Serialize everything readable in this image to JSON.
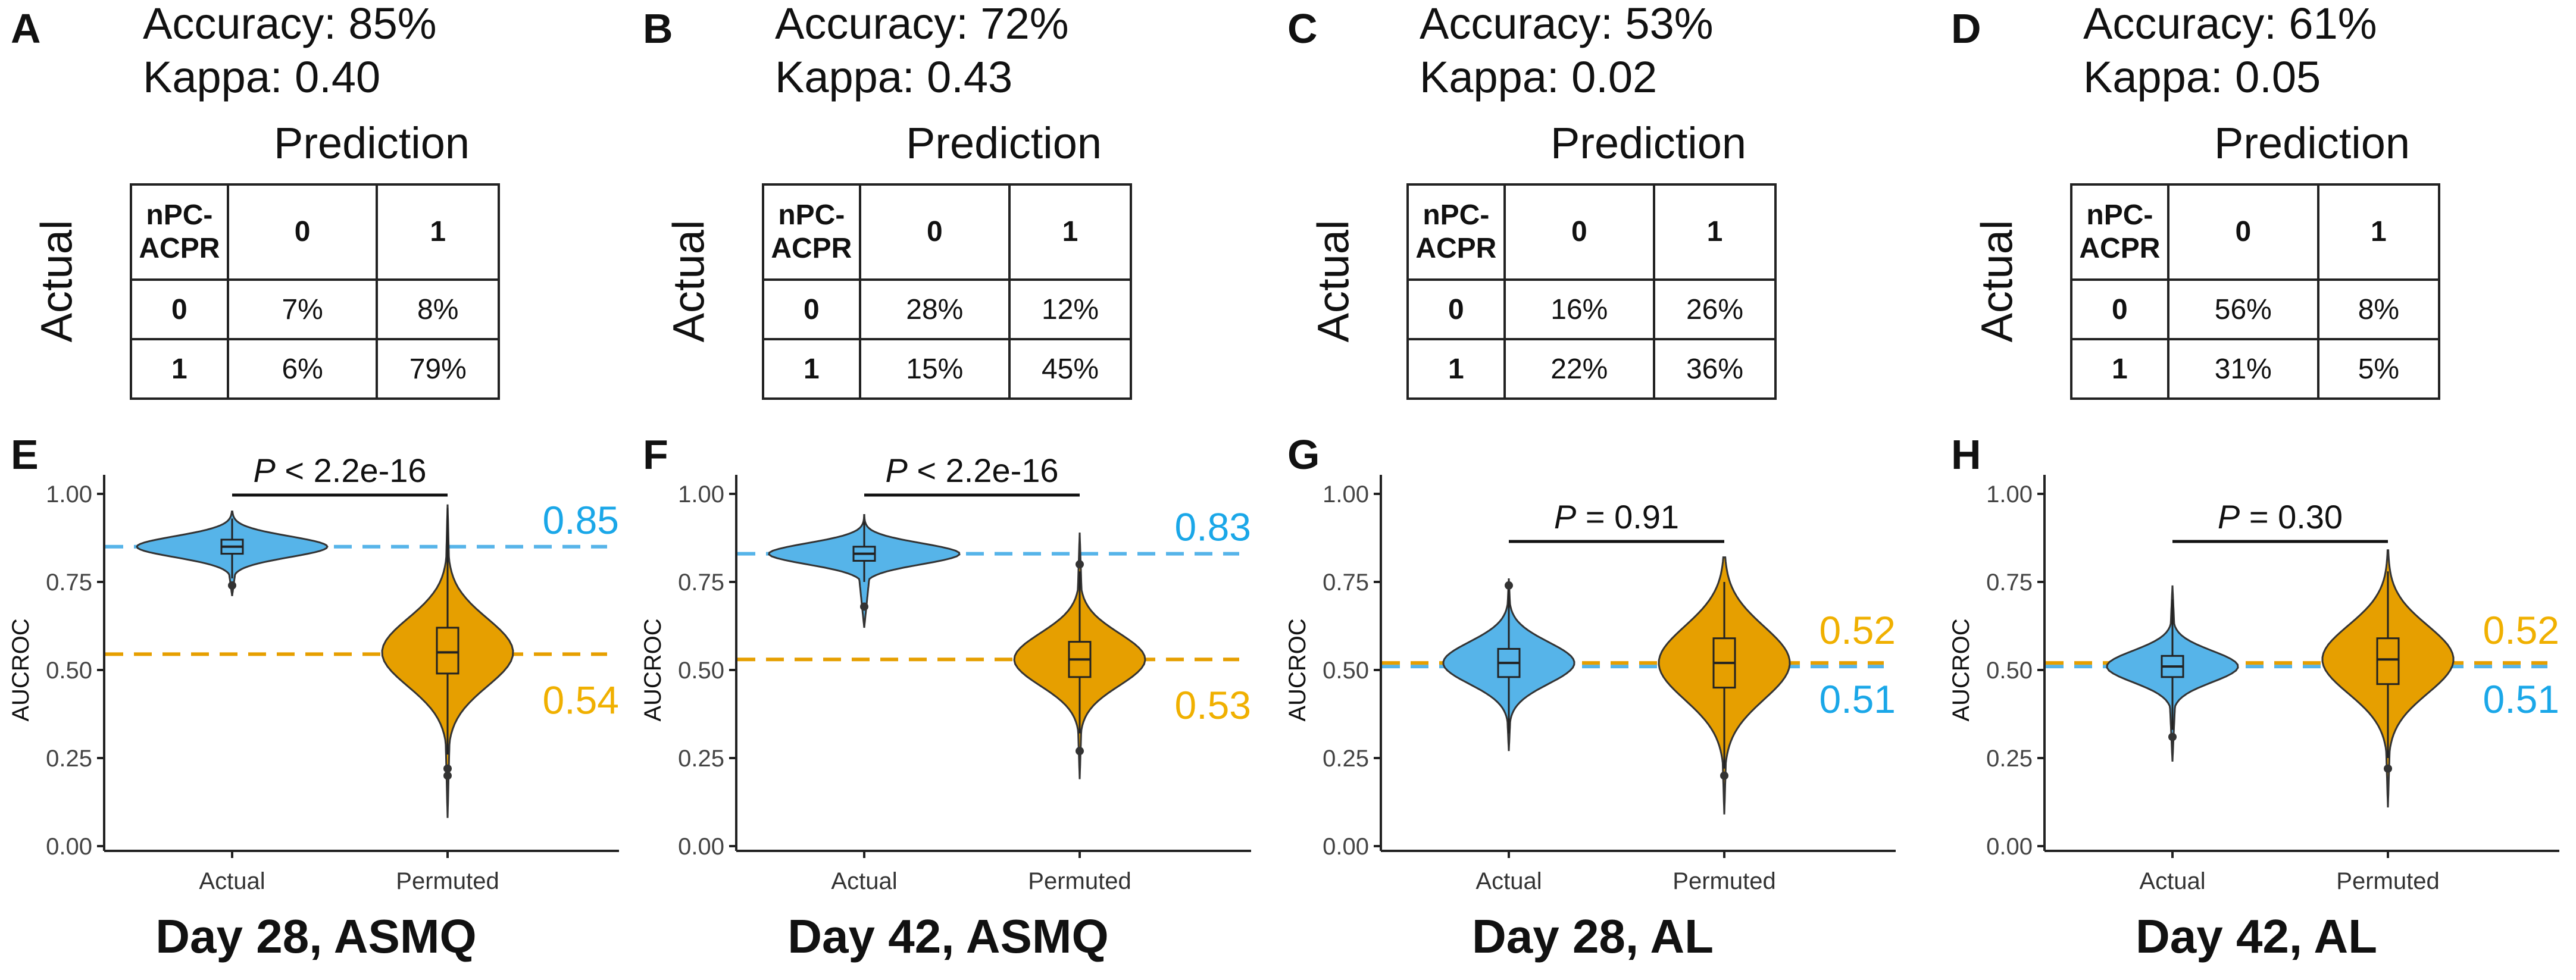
{
  "panels_top": [
    {
      "letter": "A",
      "accuracy": "Accuracy: 85%",
      "kappa": "Kappa: 0.40",
      "pred_label": "Prediction",
      "actual_label": "Actual",
      "corner_l1": "nPC-",
      "corner_l2": "ACPR",
      "col0": "0",
      "col1": "1",
      "rows": [
        {
          "h": "0",
          "c0": "7%",
          "c1": "8%"
        },
        {
          "h": "1",
          "c0": "6%",
          "c1": "79%"
        }
      ]
    },
    {
      "letter": "B",
      "accuracy": "Accuracy: 72%",
      "kappa": "Kappa: 0.43",
      "pred_label": "Prediction",
      "actual_label": "Actual",
      "corner_l1": "nPC-",
      "corner_l2": "ACPR",
      "col0": "0",
      "col1": "1",
      "rows": [
        {
          "h": "0",
          "c0": "28%",
          "c1": "12%"
        },
        {
          "h": "1",
          "c0": "15%",
          "c1": "45%"
        }
      ]
    },
    {
      "letter": "C",
      "accuracy": "Accuracy: 53%",
      "kappa": "Kappa: 0.02",
      "pred_label": "Prediction",
      "actual_label": "Actual",
      "corner_l1": "nPC-",
      "corner_l2": "ACPR",
      "col0": "0",
      "col1": "1",
      "rows": [
        {
          "h": "0",
          "c0": "16%",
          "c1": "26%"
        },
        {
          "h": "1",
          "c0": "22%",
          "c1": "36%"
        }
      ]
    },
    {
      "letter": "D",
      "accuracy": "Accuracy: 61%",
      "kappa": "Kappa: 0.05",
      "pred_label": "Prediction",
      "actual_label": "Actual",
      "corner_l1": "nPC-",
      "corner_l2": "ACPR",
      "col0": "0",
      "col1": "1",
      "rows": [
        {
          "h": "0",
          "c0": "56%",
          "c1": "8%"
        },
        {
          "h": "1",
          "c0": "31%",
          "c1": "5%"
        }
      ]
    }
  ],
  "colors": {
    "actual": "#56B4E9",
    "permuted": "#E69F00",
    "actual_text": "#1AA7E8",
    "permuted_text": "#F0B000"
  },
  "chart_data": [
    {
      "type": "violin",
      "letter": "E",
      "title": "Day 28, ASMQ",
      "ylabel": "AUCROC",
      "ylim": [
        0,
        1
      ],
      "yticks": [
        "0.00",
        "0.25",
        "0.50",
        "0.75",
        "1.00"
      ],
      "categories": [
        "Actual",
        "Permuted"
      ],
      "p_prefix": "P",
      "p_rest": " < 2.2e-16",
      "series": [
        {
          "name": "Actual",
          "median": 0.85,
          "q1": 0.83,
          "q3": 0.87,
          "whisker_low": 0.76,
          "whisker_high": 0.93,
          "min": 0.71,
          "max": 0.95,
          "outliers": [
            0.74
          ],
          "mean_line": 0.85,
          "mean_label": "0.85"
        },
        {
          "name": "Permuted",
          "median": 0.55,
          "q1": 0.49,
          "q3": 0.62,
          "whisker_low": 0.26,
          "whisker_high": 0.96,
          "min": 0.08,
          "max": 0.97,
          "outliers": [
            0.2,
            0.22
          ],
          "mean_line": 0.545,
          "mean_label": "0.54"
        }
      ]
    },
    {
      "type": "violin",
      "letter": "F",
      "title": "Day 42, ASMQ",
      "ylabel": "AUCROC",
      "ylim": [
        0,
        1
      ],
      "yticks": [
        "0.00",
        "0.25",
        "0.50",
        "0.75",
        "1.00"
      ],
      "categories": [
        "Actual",
        "Permuted"
      ],
      "p_prefix": "P",
      "p_rest": " < 2.2e-16",
      "series": [
        {
          "name": "Actual",
          "median": 0.83,
          "q1": 0.81,
          "q3": 0.85,
          "whisker_low": 0.75,
          "whisker_high": 0.92,
          "min": 0.62,
          "max": 0.94,
          "outliers": [
            0.68
          ],
          "mean_line": 0.83,
          "mean_label": "0.83"
        },
        {
          "name": "Permuted",
          "median": 0.53,
          "q1": 0.48,
          "q3": 0.58,
          "whisker_low": 0.32,
          "whisker_high": 0.78,
          "min": 0.19,
          "max": 0.89,
          "outliers": [
            0.27,
            0.8
          ],
          "mean_line": 0.53,
          "mean_label": "0.53"
        }
      ]
    },
    {
      "type": "violin",
      "letter": "G",
      "title": "Day 28, AL",
      "ylabel": "AUCROC",
      "ylim": [
        0,
        1
      ],
      "yticks": [
        "0.00",
        "0.25",
        "0.50",
        "0.75",
        "1.00"
      ],
      "categories": [
        "Actual",
        "Permuted"
      ],
      "p_prefix": "P",
      "p_rest": " = 0.91",
      "series": [
        {
          "name": "Actual",
          "median": 0.52,
          "q1": 0.48,
          "q3": 0.56,
          "whisker_low": 0.32,
          "whisker_high": 0.73,
          "min": 0.27,
          "max": 0.76,
          "outliers": [
            0.74
          ],
          "mean_line": 0.51,
          "mean_label": "0.51"
        },
        {
          "name": "Permuted",
          "median": 0.52,
          "q1": 0.45,
          "q3": 0.59,
          "whisker_low": 0.22,
          "whisker_high": 0.75,
          "min": 0.09,
          "max": 0.82,
          "outliers": [
            0.2
          ],
          "mean_line": 0.52,
          "mean_label": "0.52"
        }
      ]
    },
    {
      "type": "violin",
      "letter": "H",
      "title": "Day 42, AL",
      "ylabel": "AUCROC",
      "ylim": [
        0,
        1
      ],
      "yticks": [
        "0.00",
        "0.25",
        "0.50",
        "0.75",
        "1.00"
      ],
      "categories": [
        "Actual",
        "Permuted"
      ],
      "p_prefix": "P",
      "p_rest": " = 0.30",
      "series": [
        {
          "name": "Actual",
          "median": 0.51,
          "q1": 0.48,
          "q3": 0.54,
          "whisker_low": 0.33,
          "whisker_high": 0.7,
          "min": 0.24,
          "max": 0.74,
          "outliers": [
            0.31
          ],
          "mean_line": 0.51,
          "mean_label": "0.51"
        },
        {
          "name": "Permuted",
          "median": 0.53,
          "q1": 0.46,
          "q3": 0.59,
          "whisker_low": 0.25,
          "whisker_high": 0.78,
          "min": 0.11,
          "max": 0.84,
          "outliers": [
            0.22
          ],
          "mean_line": 0.52,
          "mean_label": "0.52"
        }
      ]
    }
  ]
}
